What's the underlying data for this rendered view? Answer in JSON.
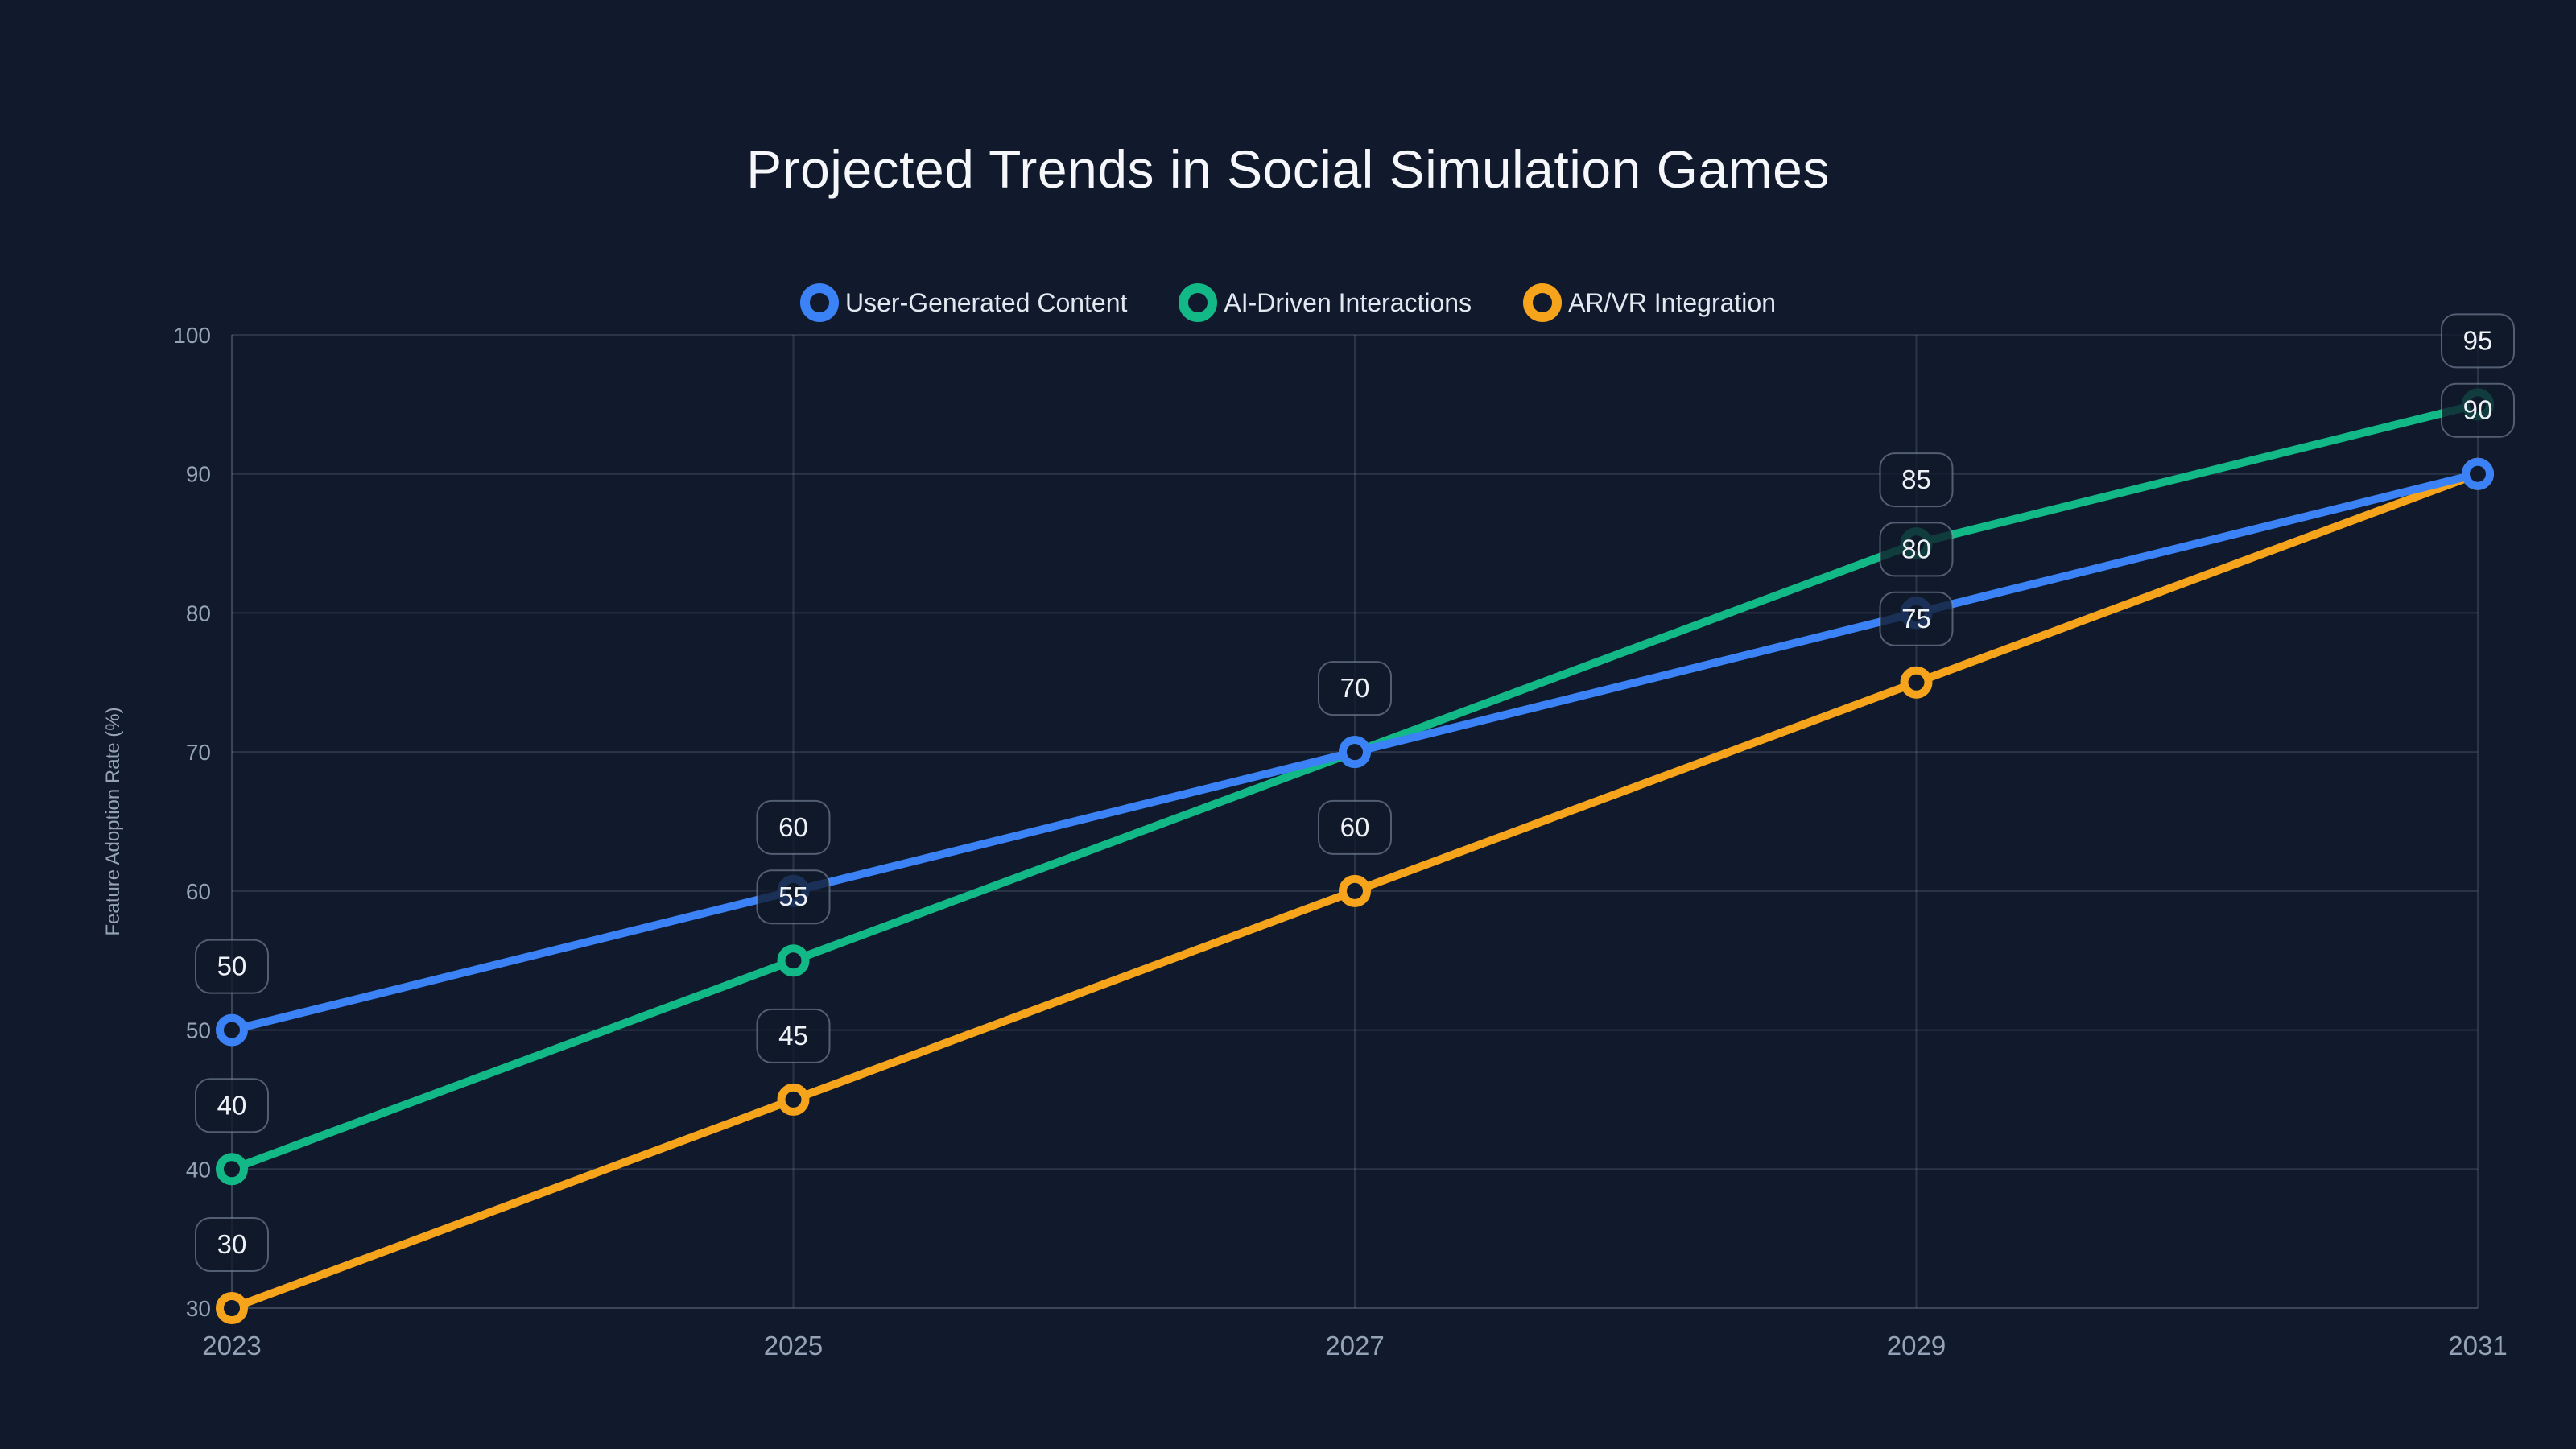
{
  "title": "Projected Trends in Social Simulation Games",
  "colors": {
    "background": "#111a2c",
    "grid": "rgba(148,163,184,0.20)",
    "axis": "rgba(148,163,184,0.32)",
    "tick_text": "#94a3b8",
    "title_text": "#f5f7fa",
    "legend_text": "#e2e8f0",
    "point_label_text": "#eef2f7",
    "point_label_bg": "rgba(17,25,42,0.78)",
    "point_label_border": "rgba(148,163,184,0.5)",
    "series_blue": "#3b82f6",
    "series_green": "#12b886",
    "series_orange": "#f6a41c"
  },
  "chart_data": {
    "type": "line",
    "title": "Projected Trends in Social Simulation Games",
    "xlabel": "",
    "ylabel": "Feature Adoption Rate (%)",
    "x": [
      2023,
      2025,
      2027,
      2029,
      2031
    ],
    "xtick_labels": [
      "2023",
      "2025",
      "2027",
      "2029",
      "2031"
    ],
    "yticks": [
      30,
      40,
      50,
      60,
      70,
      80,
      90,
      100
    ],
    "ylim": [
      30,
      100
    ],
    "grid": "on",
    "legend_position": "top-center",
    "point_labels_visible": true,
    "series": [
      {
        "name": "User-Generated Content",
        "color": "#3b82f6",
        "values": [
          50,
          60,
          70,
          80,
          90
        ]
      },
      {
        "name": "AI-Driven Interactions",
        "color": "#12b886",
        "values": [
          40,
          55,
          70,
          85,
          95
        ]
      },
      {
        "name": "AR/VR Integration",
        "color": "#f6a41c",
        "values": [
          30,
          45,
          60,
          75,
          90
        ]
      }
    ]
  }
}
